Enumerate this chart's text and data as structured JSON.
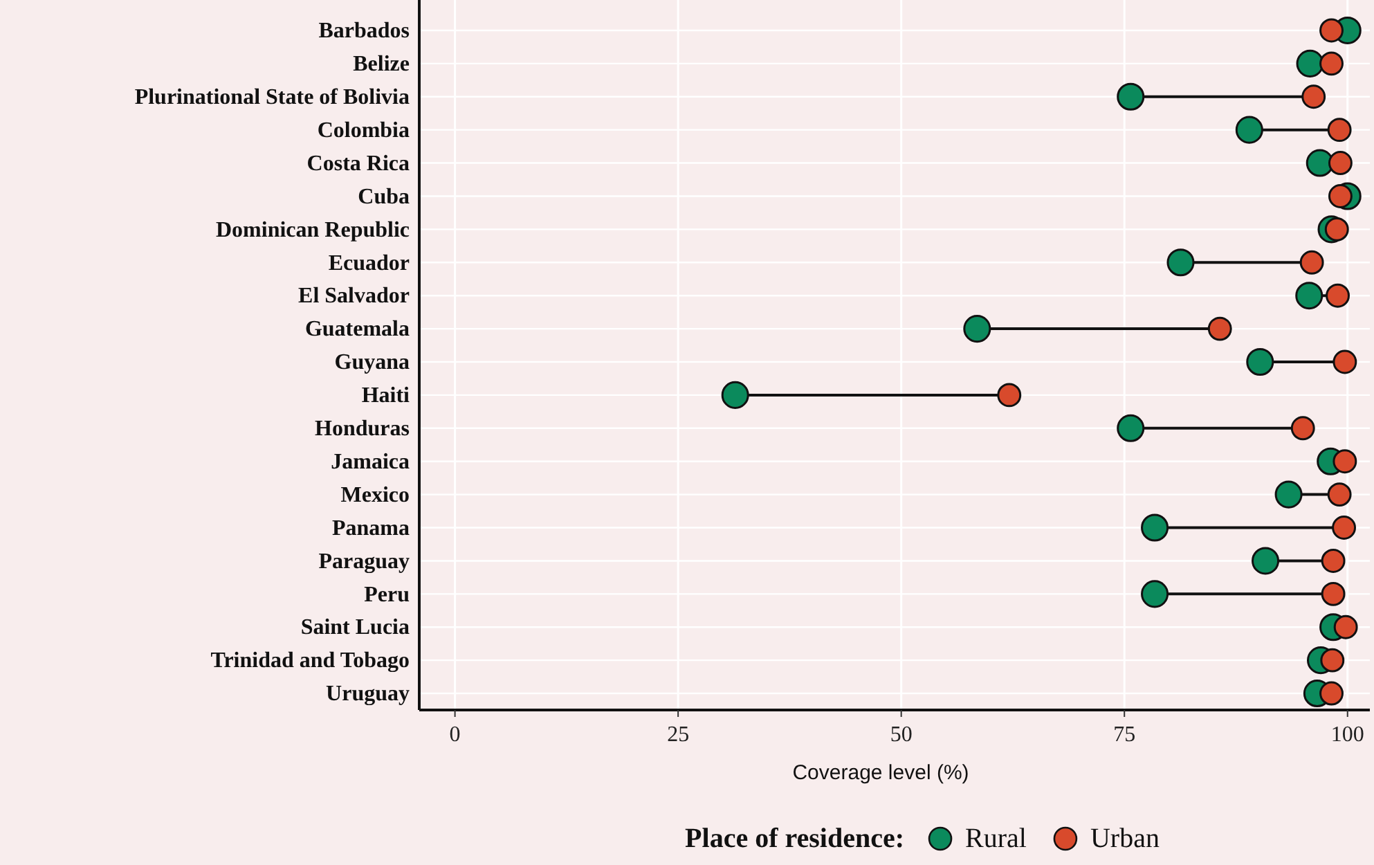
{
  "chart_data": {
    "type": "scatter",
    "orientation": "horizontal",
    "xlabel": "Coverage level (%)",
    "legend_title": "Place of residence:",
    "legend": "bottom",
    "grid": true,
    "marker": "circle",
    "categories": [
      "Barbados",
      "Belize",
      "Plurinational State of Bolivia",
      "Colombia",
      "Costa Rica",
      "Cuba",
      "Dominican Republic",
      "Ecuador",
      "El Salvador",
      "Guatemala",
      "Guyana",
      "Haiti",
      "Honduras",
      "Jamaica",
      "Mexico",
      "Panama",
      "Paraguay",
      "Peru",
      "Saint Lucia",
      "Trinidad and Tobago",
      "Uruguay"
    ],
    "xlim": [
      -4,
      102.5
    ],
    "xticks": [
      0,
      25,
      50,
      75,
      100
    ],
    "series": [
      {
        "name": "Rural",
        "color": "#0b8a5c",
        "values": [
          100,
          95.8,
          75.7,
          89.0,
          96.9,
          100,
          98.2,
          81.3,
          95.7,
          58.5,
          90.2,
          31.4,
          75.7,
          98.1,
          93.4,
          78.4,
          90.8,
          78.4,
          98.4,
          97.0,
          96.6
        ]
      },
      {
        "name": "Urban",
        "color": "#d84a2c",
        "values": [
          98.2,
          98.2,
          96.2,
          99.1,
          99.2,
          99.2,
          98.8,
          96.0,
          98.9,
          85.7,
          99.7,
          62.1,
          95.0,
          99.7,
          99.1,
          99.6,
          98.4,
          98.4,
          99.8,
          98.3,
          98.2
        ]
      }
    ]
  }
}
